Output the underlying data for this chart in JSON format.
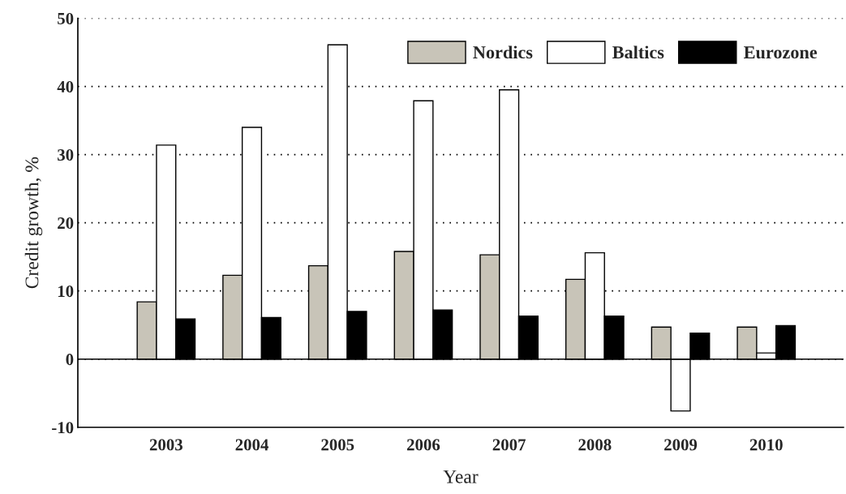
{
  "chart_data": {
    "type": "bar",
    "xlabel": "Year",
    "ylabel": "Credit growth, %",
    "categories": [
      "2003",
      "2004",
      "2005",
      "2006",
      "2007",
      "2008",
      "2009",
      "2010"
    ],
    "series": [
      {
        "name": "Nordics",
        "color": "#c8c4b8",
        "values": [
          8.4,
          12.3,
          13.7,
          15.8,
          15.3,
          11.7,
          4.7,
          4.7
        ]
      },
      {
        "name": "Baltics",
        "color": "#ffffff",
        "values": [
          31.4,
          34.0,
          46.1,
          37.9,
          39.5,
          15.6,
          -7.6,
          0.9
        ]
      },
      {
        "name": "Eurozone",
        "color": "#000000",
        "values": [
          5.9,
          6.1,
          7.0,
          7.2,
          6.3,
          6.3,
          3.8,
          4.9
        ]
      }
    ],
    "ylim": [
      -10,
      50
    ],
    "yticks": [
      -10,
      0,
      10,
      20,
      30,
      40,
      50
    ],
    "grid": "y",
    "legend": "top right"
  }
}
